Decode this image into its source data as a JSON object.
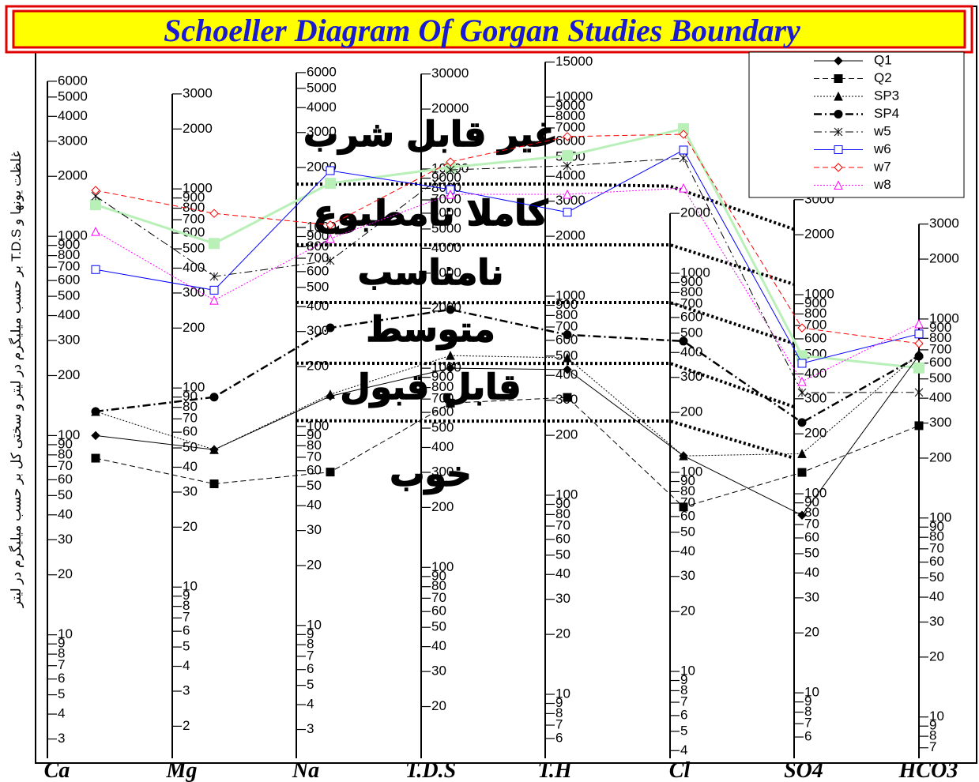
{
  "chart_data": {
    "type": "schoeller",
    "title": "Schoeller Diagram Of Gorgan Studies Boundary",
    "y_label": "غلظت یونها و T.D.S بر حسب میلیگرم در لیتر و سختی کل بر حسب میلیگرم در لیتر",
    "log_scale": true,
    "categories": [
      "Ca",
      "Mg",
      "Na",
      "T.D.S",
      "T.H",
      "Cl",
      "SO4",
      "HCO3"
    ],
    "axes": [
      {
        "ylim": [
          2.4,
          8100
        ],
        "yticks": [
          6000,
          5000,
          4000,
          3000,
          2000,
          1000,
          900,
          800,
          700,
          600,
          500,
          400,
          300,
          200,
          100,
          90,
          80,
          70,
          60,
          50,
          40,
          30,
          20,
          10,
          9,
          8,
          7,
          6,
          5,
          4,
          3
        ]
      },
      {
        "ylim": [
          1.38,
          4690
        ],
        "yticks": [
          3000,
          2000,
          1000,
          900,
          800,
          700,
          600,
          500,
          400,
          300,
          200,
          100,
          90,
          80,
          70,
          60,
          50,
          40,
          30,
          20,
          10,
          9,
          8,
          7,
          6,
          5,
          4,
          3,
          2
        ]
      },
      {
        "ylim": [
          2.15,
          7330
        ],
        "yticks": [
          6000,
          5000,
          4000,
          3000,
          2000,
          1000,
          900,
          800,
          700,
          600,
          500,
          400,
          300,
          200,
          100,
          90,
          80,
          70,
          60,
          50,
          40,
          30,
          20,
          10,
          9,
          8,
          7,
          6,
          5,
          4,
          3
        ]
      },
      {
        "ylim": [
          11,
          37240
        ],
        "yticks": [
          30000,
          20000,
          10000,
          9000,
          8000,
          7000,
          6000,
          5000,
          4000,
          3000,
          2000,
          1000,
          900,
          800,
          700,
          600,
          500,
          400,
          300,
          200,
          100,
          90,
          80,
          70,
          60,
          50,
          40,
          30,
          20
        ]
      },
      {
        "ylim": [
          4.77,
          16220
        ],
        "yticks": [
          15000,
          10000,
          9000,
          8000,
          7000,
          6000,
          5000,
          4000,
          3000,
          2000,
          1000,
          900,
          800,
          700,
          600,
          500,
          400,
          300,
          200,
          100,
          90,
          80,
          70,
          60,
          50,
          40,
          30,
          20,
          10,
          9,
          8,
          7,
          6
        ]
      },
      {
        "ylim": [
          3.66,
          12450
        ],
        "yticks": [
          2000,
          1000,
          900,
          800,
          700,
          600,
          500,
          400,
          300,
          200,
          100,
          90,
          80,
          70,
          60,
          50,
          40,
          30,
          20,
          10,
          9,
          8,
          7,
          6,
          5,
          4
        ]
      },
      {
        "ylim": [
          4.69,
          15940
        ],
        "yticks": [
          3000,
          2000,
          1000,
          900,
          800,
          700,
          600,
          500,
          400,
          300,
          200,
          100,
          90,
          80,
          70,
          60,
          50,
          40,
          30,
          20,
          10,
          9,
          8,
          7,
          6
        ]
      },
      {
        "ylim": [
          6.2,
          21150
        ],
        "yticks": [
          3000,
          2000,
          1000,
          900,
          800,
          700,
          600,
          500,
          400,
          300,
          200,
          100,
          90,
          80,
          70,
          60,
          50,
          40,
          30,
          20,
          10,
          9,
          8,
          7
        ]
      }
    ],
    "series": [
      {
        "name": "Q1",
        "color": "#000000",
        "line_style": "solid",
        "marker": "diamond",
        "marker_fill": true,
        "values": [
          100,
          49,
          142,
          1000,
          428,
          121,
          78,
          656
        ]
      },
      {
        "name": "Q2",
        "color": "#000000",
        "line_style": "dashed",
        "marker": "square",
        "marker_fill": true,
        "values": [
          77,
          33,
          59,
          668,
          310,
          67,
          128,
          291
        ]
      },
      {
        "name": "SP3",
        "color": "#000000",
        "line_style": "dotted",
        "marker": "triangle",
        "marker_fill": true,
        "values": [
          132,
          49,
          145,
          1157,
          490,
          121,
          159,
          670
        ]
      },
      {
        "name": "SP4",
        "color": "#000000",
        "line_style": "dashdot",
        "line_width": 2.5,
        "marker": "circle",
        "marker_fill": true,
        "values": [
          132,
          90,
          313,
          1970,
          640,
          456,
          228,
          650
        ]
      },
      {
        "name": "w5",
        "color": "#000000",
        "line_style": "dashdot",
        "marker": "star",
        "marker_fill": false,
        "values": [
          1592,
          363,
          681,
          9900,
          4520,
          3790,
          322,
          428
        ]
      },
      {
        "name": "w6",
        "color": "#0000ff",
        "line_style": "solid",
        "marker": "square",
        "marker_fill": false,
        "values": [
          681,
          310,
          1930,
          7890,
          2640,
          4160,
          452,
          841
        ]
      },
      {
        "name": "w7",
        "color": "#ff0000",
        "line_style": "dashed",
        "marker": "diamond",
        "marker_fill": false,
        "values": [
          1700,
          753,
          1030,
          10860,
          6340,
          4990,
          681,
          753
        ]
      },
      {
        "name": "w8",
        "color": "#ff00ff",
        "line_style": "dotted",
        "marker": "triangle",
        "marker_fill": false,
        "values": [
          1057,
          276,
          879,
          7460,
          3250,
          2680,
          366,
          946
        ]
      }
    ],
    "highlight": {
      "color": "#b8f0b8",
      "line_width": 3,
      "values": [
        1440,
        532,
        1667,
        10190,
        5080,
        5320,
        494,
        568
      ]
    },
    "zone_boundaries": [
      {
        "values": [
          null,
          null,
          1650,
          8410,
          3660,
          2740,
          2130,
          null
        ]
      },
      {
        "values": [
          null,
          null,
          818,
          4160,
          1810,
          1390,
          1127,
          null
        ]
      },
      {
        "values": [
          null,
          null,
          420,
          2130,
          929,
          713,
          568,
          null
        ]
      },
      {
        "values": [
          null,
          null,
          208,
          1057,
          459,
          353,
          273,
          null
        ]
      },
      {
        "values": [
          null,
          null,
          107,
          542,
          236,
          181,
          151,
          null
        ]
      }
    ],
    "zone_labels": [
      "غیر قابل شرب",
      "کاملا نامطبوع",
      "نامناسب",
      "متوسط",
      "قابل قبول",
      "خوب"
    ]
  }
}
